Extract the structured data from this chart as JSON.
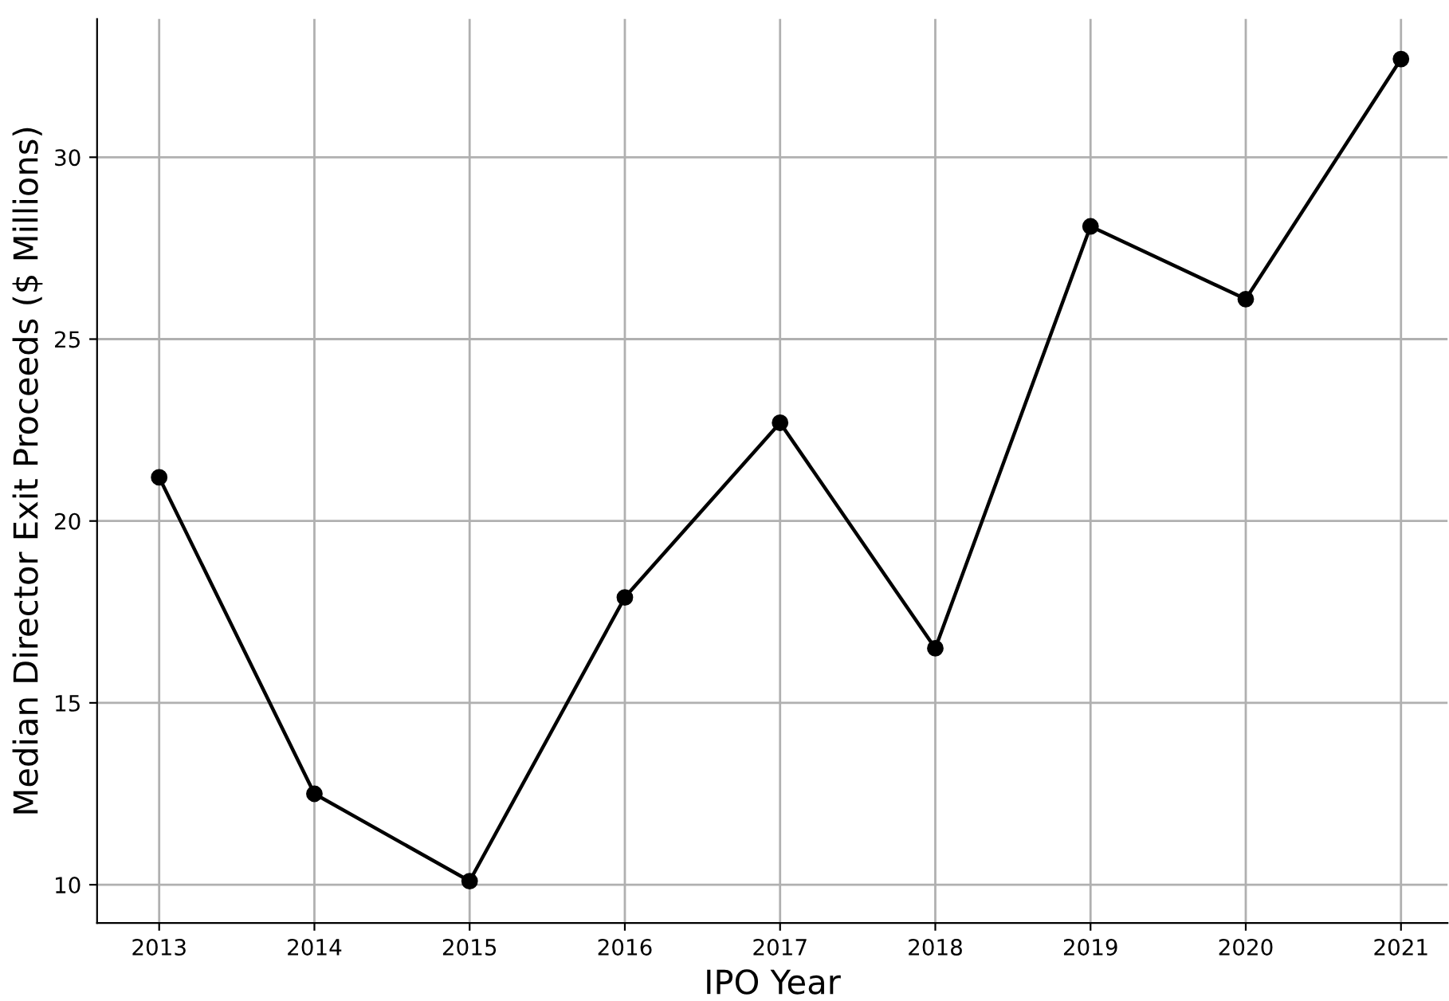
{
  "chart_data": {
    "type": "line",
    "xlabel": "IPO Year",
    "ylabel": "Median Director Exit Proceeds ($ Millions)",
    "x": [
      2013,
      2014,
      2015,
      2016,
      2017,
      2018,
      2019,
      2020,
      2021
    ],
    "series": [
      {
        "color": "#000000",
        "values": [
          21.2,
          12.5,
          10.1,
          17.9,
          22.7,
          16.5,
          28.1,
          26.1,
          32.7
        ]
      }
    ],
    "xlim": [
      2012.6,
      2021.3
    ],
    "ylim": [
      8.95,
      33.8
    ],
    "xticks": [
      2013,
      2014,
      2015,
      2016,
      2017,
      2018,
      2019,
      2020,
      2021
    ],
    "yticks": [
      10,
      15,
      20,
      25,
      30
    ],
    "grid": true,
    "marker": "circle",
    "line_style": "solid"
  }
}
